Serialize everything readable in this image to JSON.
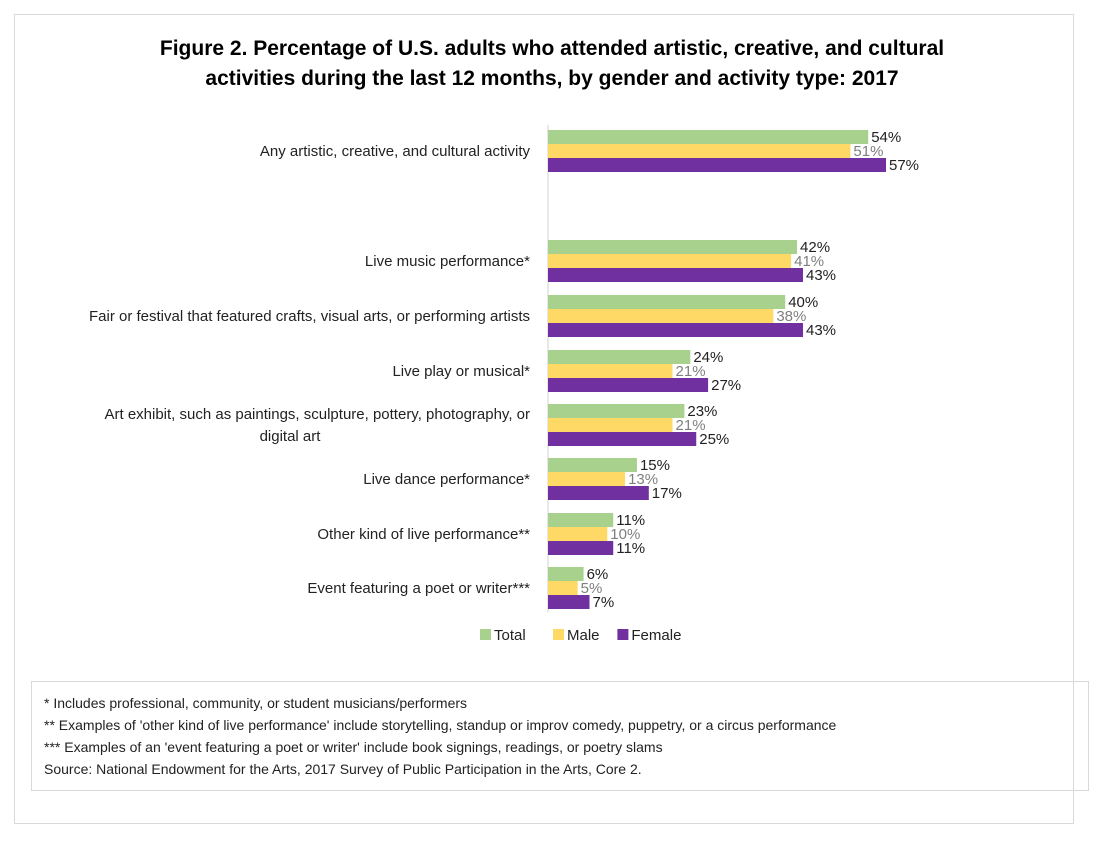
{
  "chart_data": {
    "type": "bar",
    "orientation": "horizontal",
    "title": "Figure 2. Percentage of U.S. adults who attended artistic, creative, and cultural activities during the last 12 months, by gender and activity type: 2017",
    "title_lines": [
      "Figure 2. Percentage of U.S. adults who attended artistic, creative, and cultural",
      "activities during the last 12 months, by gender and activity type: 2017"
    ],
    "categories": [
      "Any artistic, creative, and cultural activity",
      "Live music performance*",
      "Fair or festival that featured crafts, visual arts, or performing artists",
      "Live play or musical*",
      "Art exhibit, such as paintings, sculpture, pottery, photography, or digital art",
      "Live dance performance*",
      "Other kind of live performance**",
      "Event featuring a poet or writer***"
    ],
    "category_lines": [
      [
        "Any artistic, creative, and cultural activity"
      ],
      [
        "Live music performance*"
      ],
      [
        "Fair or festival that featured crafts, visual arts, or performing artists"
      ],
      [
        "Live play or musical*"
      ],
      [
        "Art exhibit, such as paintings, sculpture, pottery, photography, or",
        "digital art"
      ],
      [
        "Live dance performance*"
      ],
      [
        "Other kind of live performance**"
      ],
      [
        "Event featuring a poet or writer***"
      ]
    ],
    "series": [
      {
        "name": "Total",
        "color": "#a9d18e",
        "values": [
          54,
          42,
          40,
          24,
          23,
          15,
          11,
          6
        ]
      },
      {
        "name": "Male",
        "color": "#ffd966",
        "values": [
          51,
          41,
          38,
          21,
          21,
          13,
          10,
          5
        ]
      },
      {
        "name": "Female",
        "color": "#7030a0",
        "values": [
          57,
          43,
          43,
          27,
          25,
          17,
          11,
          7
        ]
      }
    ],
    "value_suffix": "%",
    "xlim": [
      0,
      100
    ],
    "grid": false,
    "legend_position": "bottom"
  },
  "notes": [
    "* Includes professional, community, or student musicians/performers",
    "** Examples of 'other kind of live performance' include storytelling, standup or improv comedy, puppetry, or a circus performance",
    "*** Examples of an 'event featuring a poet or writer' include book signings, readings, or poetry slams",
    "Source: National Endowment for the Arts, 2017 Survey of Public Participation in the Arts, Core 2."
  ]
}
